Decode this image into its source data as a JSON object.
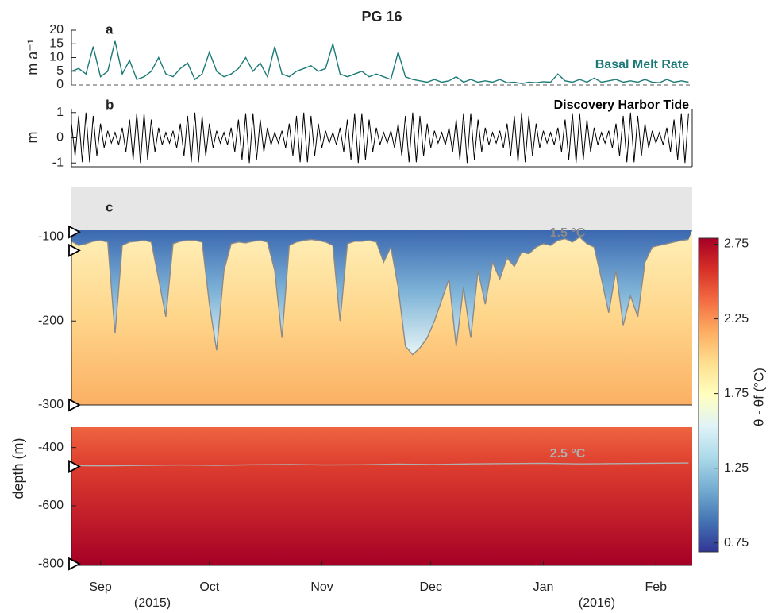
{
  "title": "PG 16",
  "chart_data": [
    {
      "type": "line",
      "panel_label": "a",
      "ylabel": "m a⁻¹",
      "xlim": [
        0,
        171
      ],
      "ylim": [
        0,
        20
      ],
      "yticks": [
        0,
        5,
        10,
        15,
        20
      ],
      "hline": 0,
      "x": [
        0,
        2,
        4,
        6,
        8,
        10,
        12,
        14,
        16,
        18,
        20,
        22,
        24,
        26,
        28,
        30,
        32,
        34,
        36,
        38,
        40,
        42,
        44,
        46,
        48,
        50,
        52,
        54,
        56,
        58,
        60,
        62,
        64,
        66,
        68,
        70,
        72,
        74,
        76,
        78,
        80,
        82,
        84,
        86,
        88,
        90,
        92,
        94,
        96,
        98,
        100,
        102,
        104,
        106,
        108,
        110,
        112,
        114,
        116,
        118,
        120,
        122,
        124,
        126,
        128,
        130,
        132,
        134,
        136,
        138,
        140,
        142,
        144,
        146,
        148,
        150,
        152,
        154,
        156,
        158,
        160,
        162,
        164,
        166,
        168,
        170
      ],
      "series": [
        {
          "name": "Basal Melt Rate",
          "color": "#1b7a78",
          "values": [
            5,
            6,
            4,
            14,
            3,
            5,
            16,
            4,
            9,
            2,
            3,
            5,
            10,
            4,
            3,
            6,
            8,
            2,
            4,
            12,
            5,
            3,
            4,
            6,
            10,
            5,
            8,
            3,
            14,
            4,
            3,
            5,
            6,
            7,
            5,
            6,
            15,
            4,
            3,
            4,
            5,
            3,
            4,
            3,
            2,
            12,
            3,
            2,
            1.5,
            1,
            2,
            1,
            1.5,
            3,
            1,
            2,
            1,
            1.5,
            1,
            2,
            0.8,
            1,
            0.5,
            1,
            0.8,
            1.2,
            1,
            4,
            1.5,
            1,
            2,
            1,
            2.5,
            1,
            1.5,
            2,
            1,
            1.5,
            1,
            2,
            1,
            0.8,
            2,
            1,
            1.5,
            1
          ]
        }
      ]
    },
    {
      "type": "line",
      "panel_label": "b",
      "ylabel": "m",
      "xlim": [
        0,
        171
      ],
      "ylim": [
        -1.15,
        1.15
      ],
      "yticks": [
        -1,
        0,
        1
      ],
      "x": [
        0,
        1,
        2,
        3,
        4,
        5,
        6,
        7,
        8,
        9,
        10,
        11,
        12,
        13,
        14,
        15,
        16,
        17,
        18,
        19,
        20,
        21,
        22,
        23,
        24,
        25,
        26,
        27,
        28,
        29,
        30,
        31,
        32,
        33,
        34,
        35,
        36,
        37,
        38,
        39,
        40,
        41,
        42,
        43,
        44,
        45,
        46,
        47,
        48,
        49,
        50,
        51,
        52,
        53,
        54,
        55,
        56,
        57,
        58,
        59,
        60,
        61,
        62,
        63,
        64,
        65,
        66,
        67,
        68,
        69,
        70,
        71,
        72,
        73,
        74,
        75,
        76,
        77,
        78,
        79,
        80,
        81,
        82,
        83,
        84,
        85,
        86,
        87,
        88,
        89,
        90,
        91,
        92,
        93,
        94,
        95,
        96,
        97,
        98,
        99,
        100,
        101,
        102,
        103,
        104,
        105,
        106,
        107,
        108,
        109,
        110,
        111,
        112,
        113,
        114,
        115,
        116,
        117,
        118,
        119,
        120,
        121,
        122,
        123,
        124,
        125,
        126,
        127,
        128,
        129,
        130,
        131,
        132,
        133,
        134,
        135,
        136,
        137,
        138,
        139,
        140,
        141,
        142,
        143,
        144,
        145,
        146,
        147,
        148,
        149,
        150,
        151,
        152,
        153,
        154,
        155,
        156,
        157,
        158,
        159,
        160,
        161,
        162,
        163,
        164,
        165,
        166,
        167,
        168,
        169,
        170
      ],
      "series": [
        {
          "name": "Discovery Harbor Tide",
          "color": "#000000",
          "values": [
            0.56,
            -0.72,
            0.87,
            -0.97,
            1,
            -0.97,
            0.87,
            -0.72,
            0.56,
            -0.4,
            0.28,
            -0.21,
            0.21,
            -0.28,
            0.4,
            -0.56,
            0.72,
            -0.87,
            0.97,
            -1,
            0.97,
            -0.87,
            0.72,
            -0.56,
            0.4,
            -0.28,
            0.21,
            -0.21,
            0.28,
            -0.4,
            0.56,
            -0.72,
            0.87,
            -0.97,
            1,
            -0.97,
            0.87,
            -0.72,
            0.56,
            -0.4,
            0.28,
            -0.21,
            0.21,
            -0.28,
            0.4,
            -0.56,
            0.72,
            -0.87,
            0.97,
            -1,
            0.97,
            -0.87,
            0.72,
            -0.56,
            0.4,
            -0.28,
            0.21,
            -0.21,
            0.28,
            -0.4,
            0.56,
            -0.72,
            0.87,
            -0.97,
            1,
            -0.97,
            0.87,
            -0.72,
            0.56,
            -0.4,
            0.28,
            -0.21,
            0.21,
            -0.28,
            0.4,
            -0.56,
            0.72,
            -0.87,
            0.97,
            -1,
            0.97,
            -0.87,
            0.72,
            -0.56,
            0.4,
            -0.28,
            0.21,
            -0.21,
            0.28,
            -0.4,
            0.56,
            -0.72,
            0.87,
            -0.97,
            1,
            -0.97,
            0.87,
            -0.72,
            0.56,
            -0.4,
            0.28,
            -0.21,
            0.21,
            -0.28,
            0.4,
            -0.56,
            0.72,
            -0.87,
            0.97,
            -1,
            0.97,
            -0.87,
            0.72,
            -0.56,
            0.4,
            -0.28,
            0.21,
            -0.21,
            0.28,
            -0.4,
            0.56,
            -0.72,
            0.87,
            -0.97,
            1,
            -0.97,
            0.87,
            -0.72,
            0.56,
            -0.4,
            0.28,
            -0.21,
            0.21,
            -0.28,
            0.4,
            -0.56,
            0.72,
            -0.87,
            0.97,
            -1,
            0.97,
            -0.87,
            0.72,
            -0.56,
            0.4,
            -0.28,
            0.21,
            -0.21,
            0.28,
            -0.4,
            0.56,
            -0.72,
            0.87,
            -0.97,
            1,
            -0.97,
            0.87,
            -0.72,
            0.56,
            -0.4,
            0.28,
            -0.21,
            0.21,
            -0.28,
            0.4,
            -0.56,
            0.72,
            -0.87,
            0.97,
            -1,
            0.97
          ]
        }
      ]
    },
    {
      "type": "heatmap",
      "panel_label": "c",
      "ylabel": "depth (m)",
      "xlim": [
        0,
        171
      ],
      "xticks": [
        {
          "value": 8,
          "label": "Sep"
        },
        {
          "value": 38,
          "label": "Oct"
        },
        {
          "value": 69,
          "label": "Nov"
        },
        {
          "value": 99,
          "label": "Dec"
        },
        {
          "value": 130,
          "label": "Jan"
        },
        {
          "value": 161,
          "label": "Feb"
        }
      ],
      "year_labels": [
        "(2015)",
        "(2016)"
      ],
      "upper": {
        "ylim": [
          -300,
          -92
        ],
        "yticks": [
          -100,
          -200,
          -300
        ]
      },
      "lower": {
        "ylim": [
          -805,
          -330
        ],
        "yticks": [
          -400,
          -600,
          -800
        ]
      },
      "sensor_depths": [
        -94,
        -116,
        -300,
        -465,
        -800
      ],
      "isotherms": [
        {
          "name": "1.5 °C",
          "panel": "upper",
          "color": "#8a8a8a",
          "x": [
            0,
            2,
            4,
            6,
            8,
            10,
            12,
            14,
            16,
            18,
            20,
            22,
            24,
            26,
            28,
            30,
            32,
            34,
            36,
            38,
            40,
            42,
            44,
            46,
            48,
            50,
            52,
            54,
            56,
            58,
            60,
            62,
            64,
            66,
            68,
            70,
            72,
            74,
            76,
            78,
            80,
            82,
            84,
            86,
            88,
            90,
            92,
            94,
            96,
            98,
            100,
            102,
            104,
            106,
            108,
            110,
            112,
            114,
            116,
            118,
            120,
            122,
            124,
            126,
            128,
            130,
            132,
            134,
            136,
            138,
            140,
            142,
            144,
            146,
            148,
            150,
            152,
            154,
            156,
            158,
            160,
            162,
            164,
            166,
            168,
            170
          ],
          "values": [
            -105,
            -110,
            -108,
            -105,
            -104,
            -106,
            -215,
            -110,
            -106,
            -105,
            -104,
            -106,
            -150,
            -195,
            -108,
            -105,
            -104,
            -104,
            -106,
            -180,
            -235,
            -140,
            -108,
            -106,
            -107,
            -105,
            -104,
            -106,
            -140,
            -220,
            -110,
            -106,
            -104,
            -103,
            -104,
            -106,
            -110,
            -200,
            -108,
            -105,
            -105,
            -104,
            -106,
            -130,
            -112,
            -160,
            -230,
            -240,
            -232,
            -220,
            -200,
            -175,
            -150,
            -230,
            -160,
            -220,
            -140,
            -180,
            -130,
            -150,
            -125,
            -135,
            -118,
            -120,
            -112,
            -108,
            -110,
            -104,
            -102,
            -106,
            -100,
            -108,
            -112,
            -150,
            -190,
            -140,
            -205,
            -170,
            -195,
            -130,
            -112,
            -110,
            -108,
            -106,
            -104,
            -103
          ]
        },
        {
          "name": "2.5 °C",
          "panel": "lower",
          "color": "#b0b0b0",
          "x": [
            0,
            10,
            20,
            30,
            40,
            50,
            60,
            70,
            80,
            90,
            100,
            110,
            120,
            130,
            140,
            150,
            160,
            170
          ],
          "values": [
            -462,
            -463,
            -461,
            -460,
            -461,
            -459,
            -458,
            -460,
            -459,
            -457,
            -458,
            -456,
            -455,
            -454,
            -456,
            -455,
            -454,
            -453
          ]
        }
      ],
      "colorbar": {
        "label": "θ - θf (°C)",
        "clim": [
          0.69,
          2.79
        ],
        "ticks": [
          0.75,
          1.25,
          1.75,
          2.25,
          2.75
        ],
        "colormap": [
          "#313695",
          "#4575b4",
          "#74add1",
          "#abd9e9",
          "#e0f3f8",
          "#ffffbf",
          "#fee090",
          "#fdae61",
          "#f46d43",
          "#d73027",
          "#a50026"
        ]
      }
    }
  ]
}
